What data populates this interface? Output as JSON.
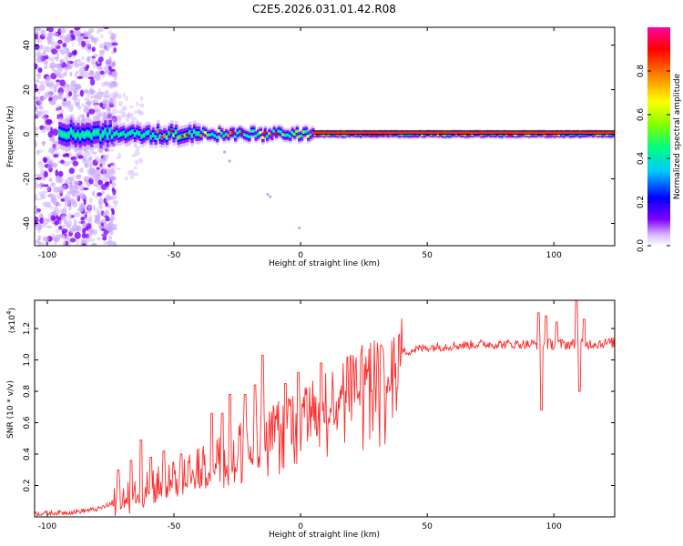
{
  "title": "C2E5.2026.031.01.42.R08",
  "colors": {
    "snr_line": "#ff2a2a",
    "spectro_line": "#000000",
    "colormap": [
      "#ffffff",
      "#d8b8ff",
      "#7f00ff",
      "#0000ff",
      "#00c8ff",
      "#00ff80",
      "#80ff00",
      "#ffff00",
      "#ff8000",
      "#ff0000",
      "#ff00a0"
    ]
  },
  "chart_data": [
    {
      "type": "heatmap",
      "name": "spectrogram",
      "xlabel": "Height of straight line (km)",
      "ylabel": "Frequency (Hz)",
      "xlim": [
        -105,
        124
      ],
      "ylim": [
        -50,
        48
      ],
      "x_ticks": [
        "-100",
        "-50",
        "0",
        "50",
        "100"
      ],
      "x_tick_values": [
        -100,
        -50,
        0,
        50,
        100
      ],
      "y_ticks": [
        "-40",
        "-20",
        "0",
        "20",
        "40"
      ],
      "y_tick_values": [
        -40,
        -20,
        0,
        20,
        40
      ],
      "ridge_line_hz": [
        0,
        1.5
      ],
      "ridge_start_km": 5,
      "description_of_energy": "broad scatter below -75 km, concentrated band near 0 Hz from -80 to 124 km",
      "colorbar": {
        "label": "Normalized spectral amplitude",
        "ticks": [
          "0.0",
          "0.2",
          "0.4",
          "0.6",
          "0.8"
        ],
        "tick_values": [
          0.0,
          0.2,
          0.4,
          0.6,
          0.8
        ],
        "range": [
          0,
          1
        ]
      }
    },
    {
      "type": "line",
      "name": "snr",
      "xlabel": "Height of straight line (km)",
      "ylabel": "SNR (10 * v/v)",
      "y_scale_label": "(x10",
      "y_scale_exp": "4",
      "xlim": [
        -105,
        124
      ],
      "ylim": [
        0,
        1.38
      ],
      "x_ticks": [
        "-100",
        "-50",
        "0",
        "50",
        "100"
      ],
      "x_tick_values": [
        -100,
        -50,
        0,
        50,
        100
      ],
      "y_ticks": [
        "0.2",
        "0.4",
        "0.6",
        "0.8",
        "1.0",
        "1.2"
      ],
      "y_tick_values": [
        0.2,
        0.4,
        0.6,
        0.8,
        1.0,
        1.2
      ],
      "trend": {
        "x": [
          -105,
          -90,
          -80,
          -75,
          -70,
          -60,
          -50,
          -40,
          -30,
          -20,
          -10,
          0,
          10,
          20,
          30,
          40,
          50,
          60,
          70,
          80,
          90,
          100,
          110,
          124
        ],
        "y": [
          0.02,
          0.03,
          0.05,
          0.08,
          0.12,
          0.18,
          0.24,
          0.31,
          0.4,
          0.48,
          0.56,
          0.64,
          0.74,
          0.86,
          0.97,
          1.05,
          1.08,
          1.09,
          1.1,
          1.1,
          1.1,
          1.1,
          1.1,
          1.11
        ]
      },
      "spikes": [
        {
          "x": -72,
          "y": 0.3
        },
        {
          "x": -67,
          "y": 0.36
        },
        {
          "x": -63,
          "y": 0.49
        },
        {
          "x": -59,
          "y": 0.38
        },
        {
          "x": -54,
          "y": 0.42
        },
        {
          "x": -47,
          "y": 0.4
        },
        {
          "x": -35,
          "y": 0.66
        },
        {
          "x": -31,
          "y": 0.66
        },
        {
          "x": -28,
          "y": 0.78
        },
        {
          "x": -22,
          "y": 0.78
        },
        {
          "x": -18,
          "y": 0.84
        },
        {
          "x": -15,
          "y": 1.03
        },
        {
          "x": -6,
          "y": 0.85
        },
        {
          "x": -1,
          "y": 0.92
        },
        {
          "x": 8,
          "y": 0.98
        },
        {
          "x": 94,
          "y": 1.3
        },
        {
          "x": 95,
          "y": 0.68
        },
        {
          "x": 97,
          "y": 1.28
        },
        {
          "x": 101,
          "y": 1.24
        },
        {
          "x": 109,
          "y": 1.4
        },
        {
          "x": 110,
          "y": 0.8
        },
        {
          "x": 112,
          "y": 1.26
        }
      ]
    }
  ]
}
